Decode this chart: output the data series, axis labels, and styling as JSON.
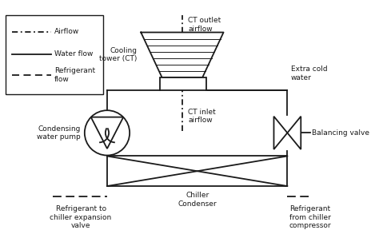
{
  "background_color": "#ffffff",
  "line_color": "#1a1a1a",
  "legend": {
    "airflow_label": "Airflow",
    "water_label": "Water flow",
    "refrigerant_label": "Refrigerant\nflow"
  },
  "labels": {
    "ct_outlet": "CT outlet\nairflow",
    "cooling_tower": "Cooling\ntower (CT)",
    "extra_cold": "Extra cold\nwater",
    "ct_inlet": "CT inlet\nairflow",
    "condensing_pump": "Condensing\nwater pump",
    "balancing_valve": "Balancing valve",
    "chiller_condenser": "Chiller\nCondenser",
    "refrigerant_to": "Refrigerant to\nchiller expansion\nvalve",
    "refrigerant_from": "Refrigerant\nfrom chiller\ncompressor"
  }
}
